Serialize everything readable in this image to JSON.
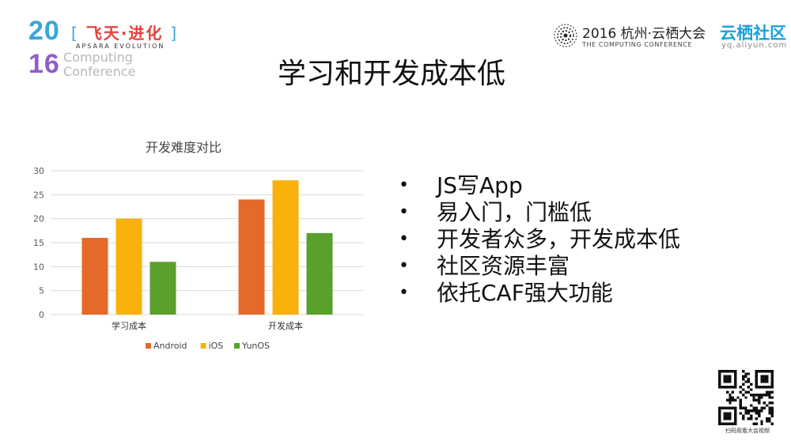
{
  "header": {
    "year_top": "20",
    "year_bottom": "16",
    "slogan_open": "[",
    "slogan": "飞天·进化",
    "slogan_close": "]",
    "slogan_sub": "APSARA EVOLUTION",
    "computing_line1": "Computing",
    "computing_line2": "Conference",
    "conference_main": "2016 杭州·云栖大会",
    "conference_sub": "THE COMPUTING CONFERENCE",
    "community_name": "云栖社区",
    "community_url": "yq.aliyun.com"
  },
  "slide": {
    "title": "学习和开发成本低",
    "bullets": [
      "JS写App",
      "易入门，门槛低",
      "开发者众多，开发成本低",
      "社区资源丰富",
      "依托CAF强大功能"
    ],
    "bullet_glyph": "•"
  },
  "qr": {
    "caption": "扫码观看大会视频"
  },
  "colors": {
    "android": "#E46A2A",
    "ios": "#F9B20C",
    "yunos": "#5AA02C",
    "grid": "#d9d9d9",
    "axis_text": "#595959"
  },
  "chart_data": {
    "type": "bar",
    "title": "开发难度对比",
    "categories": [
      "学习成本",
      "开发成本"
    ],
    "series": [
      {
        "name": "Android",
        "values": [
          16,
          24
        ]
      },
      {
        "name": "iOS",
        "values": [
          20,
          28
        ]
      },
      {
        "name": "YunOS",
        "values": [
          11,
          17
        ]
      }
    ],
    "ylim": [
      0,
      30
    ],
    "yticks": [
      0,
      5,
      10,
      15,
      20,
      25,
      30
    ],
    "grid": true,
    "legend": "bottom"
  }
}
